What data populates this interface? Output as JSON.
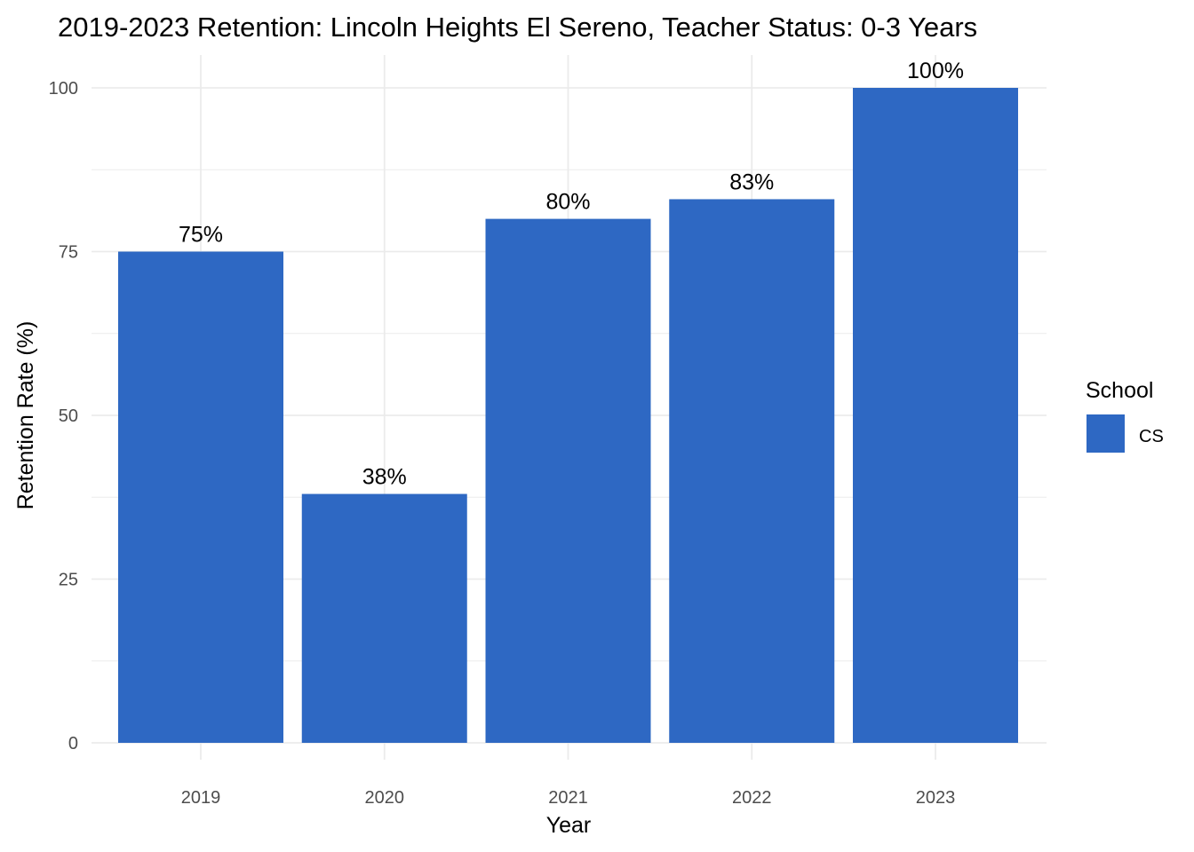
{
  "chart_data": {
    "type": "bar",
    "title": "2019-2023 Retention: Lincoln Heights El Sereno, Teacher Status: 0-3 Years",
    "xlabel": "Year",
    "ylabel": "Retention Rate (%)",
    "categories": [
      "2019",
      "2020",
      "2021",
      "2022",
      "2023"
    ],
    "series": [
      {
        "name": "CS",
        "color": "#2e68c3",
        "values": [
          75,
          38,
          80,
          83,
          100
        ],
        "labels": [
          "75%",
          "38%",
          "80%",
          "83%",
          "100%"
        ]
      }
    ],
    "ylim": [
      0,
      102
    ],
    "yticks": [
      0,
      25,
      50,
      75,
      100
    ],
    "y_tick_labels": [
      "0",
      "25",
      "50",
      "75",
      "100"
    ],
    "grid": true,
    "legend": {
      "title": "School",
      "position": "right"
    }
  }
}
